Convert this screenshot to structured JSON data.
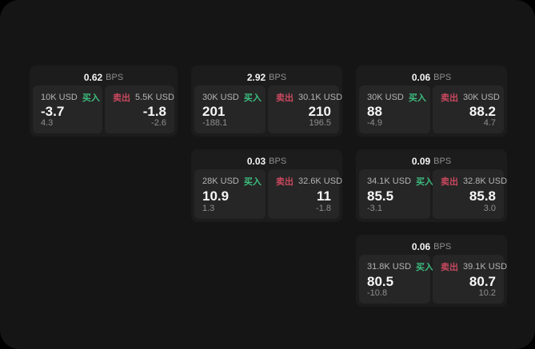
{
  "labels": {
    "bps_suffix": "BPS",
    "buy": "买入",
    "sell": "卖出"
  },
  "colors": {
    "page_bg": "#151515",
    "card_bg": "#1c1c1c",
    "panel_bg": "#262626",
    "buy_green": "#3cbd7e",
    "sell_red": "#c8485f",
    "label_text": "#b4b4b4",
    "muted_text": "#8f8f8f"
  },
  "cards": [
    {
      "bps": "0.62",
      "grid": {
        "row": 1,
        "col": 1
      },
      "buy": {
        "amount": "10K USD",
        "value": "-3.7",
        "sub": "4.3"
      },
      "sell": {
        "amount": "5.5K USD",
        "value": "-1.8",
        "sub": "-2.6"
      }
    },
    {
      "bps": "2.92",
      "grid": {
        "row": 1,
        "col": 2
      },
      "buy": {
        "amount": "30K USD",
        "value": "201",
        "sub": "-188.1"
      },
      "sell": {
        "amount": "30.1K USD",
        "value": "210",
        "sub": "196.5"
      }
    },
    {
      "bps": "0.06",
      "grid": {
        "row": 1,
        "col": 3
      },
      "buy": {
        "amount": "30K USD",
        "value": "88",
        "sub": "-4.9"
      },
      "sell": {
        "amount": "30K USD",
        "value": "88.2",
        "sub": "4.7"
      }
    },
    {
      "bps": "0.03",
      "grid": {
        "row": 2,
        "col": 2
      },
      "buy": {
        "amount": "28K USD",
        "value": "10.9",
        "sub": "1.3"
      },
      "sell": {
        "amount": "32.6K USD",
        "value": "11",
        "sub": "-1.8"
      }
    },
    {
      "bps": "0.09",
      "grid": {
        "row": 2,
        "col": 3
      },
      "buy": {
        "amount": "34.1K USD",
        "value": "85.5",
        "sub": "-3.1"
      },
      "sell": {
        "amount": "32.8K USD",
        "value": "85.8",
        "sub": "3.0"
      }
    },
    {
      "bps": "0.06",
      "grid": {
        "row": 3,
        "col": 3
      },
      "buy": {
        "amount": "31.8K USD",
        "value": "80.5",
        "sub": "-10.8"
      },
      "sell": {
        "amount": "39.1K USD",
        "value": "80.7",
        "sub": "10.2"
      }
    }
  ]
}
